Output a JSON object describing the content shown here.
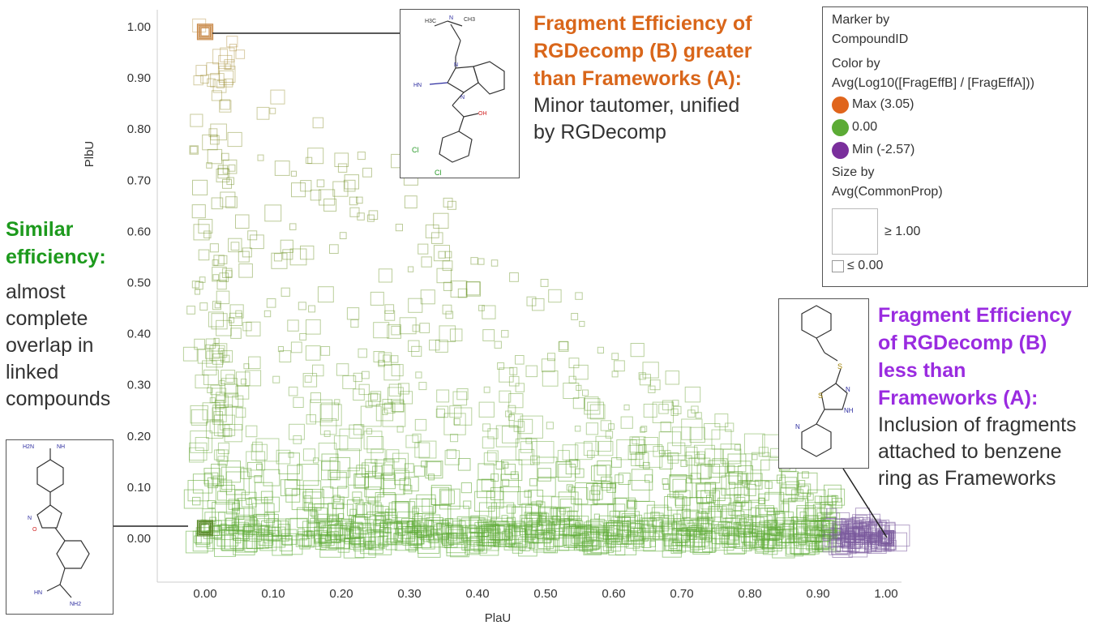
{
  "chart_data": {
    "type": "scatter",
    "title": "",
    "xlabel": "PlaU",
    "ylabel": "PlbU",
    "xlim": [
      -0.05,
      1.03
    ],
    "ylim": [
      -0.04,
      1.03
    ],
    "x_ticks": [
      "0.00",
      "0.10",
      "0.20",
      "0.30",
      "0.40",
      "0.50",
      "0.60",
      "0.70",
      "0.80",
      "0.90",
      "1.00"
    ],
    "y_ticks": [
      "0.00",
      "0.10",
      "0.20",
      "0.30",
      "0.40",
      "0.50",
      "0.60",
      "0.70",
      "0.80",
      "0.90",
      "1.00"
    ],
    "marker": "square (hollow)",
    "grid": false,
    "point_distribution": "dense triangular cloud bounded by (0,1), (0,0) and (1,0); highest density along PlbU 0.00–0.15",
    "color_scale": {
      "max_color": "#e0651c",
      "mid_color": "#5cab35",
      "min_color": "#7a2f9c",
      "max": 3.05,
      "mid": 0.0,
      "min": -2.57
    },
    "highlights": [
      {
        "x": 0.0,
        "y": 0.99,
        "color": "#c98a4a"
      },
      {
        "x": 1.0,
        "y": 0.0,
        "color": "#7a5a9c"
      },
      {
        "x": 0.0,
        "y": 0.02,
        "color": "#5a8a2a"
      }
    ]
  },
  "legend": {
    "marker_title": "Marker by",
    "marker_field": "CompoundID",
    "color_title": "Color by",
    "color_field": "Avg(Log10([FragEffB] / [FragEffA]))",
    "color_items": [
      {
        "label": "Max (3.05)",
        "color": "#e0651c"
      },
      {
        "label": "0.00",
        "color": "#5cab35"
      },
      {
        "label": "Min (-2.57)",
        "color": "#7a2f9c"
      }
    ],
    "size_title": "Size by",
    "size_field": "Avg(CommonProp)",
    "size_max_label": "≥ 1.00",
    "size_min_label": "≤ 0.00"
  },
  "annotations": {
    "top": {
      "heading": [
        "Fragment Efficiency of",
        "RGDecomp (B) greater",
        "than Frameworks (A):"
      ],
      "body": [
        "Minor tautomer, unified",
        "by RGDecomp"
      ]
    },
    "left": {
      "heading": [
        "Similar",
        "efficiency:"
      ],
      "body": [
        "almost",
        "complete",
        "overlap in",
        "linked",
        "compounds"
      ]
    },
    "right": {
      "heading": [
        "Fragment Efficiency",
        "of RGDecomp (B)",
        "less than",
        "Frameworks (A):"
      ],
      "body": [
        "Inclusion of fragments",
        "attached to benzene",
        "ring as Frameworks"
      ]
    }
  },
  "structures": {
    "top": {
      "labels": [
        "H3C",
        "N",
        "CH3",
        "N",
        "HN",
        "N",
        "OH",
        "Cl",
        "Cl"
      ]
    },
    "left": {
      "labels": [
        "H2N",
        "NH",
        "O",
        "N",
        "HN",
        "NH2"
      ]
    },
    "right": {
      "labels": [
        "S",
        "S",
        "N",
        "NH",
        "N"
      ]
    }
  }
}
